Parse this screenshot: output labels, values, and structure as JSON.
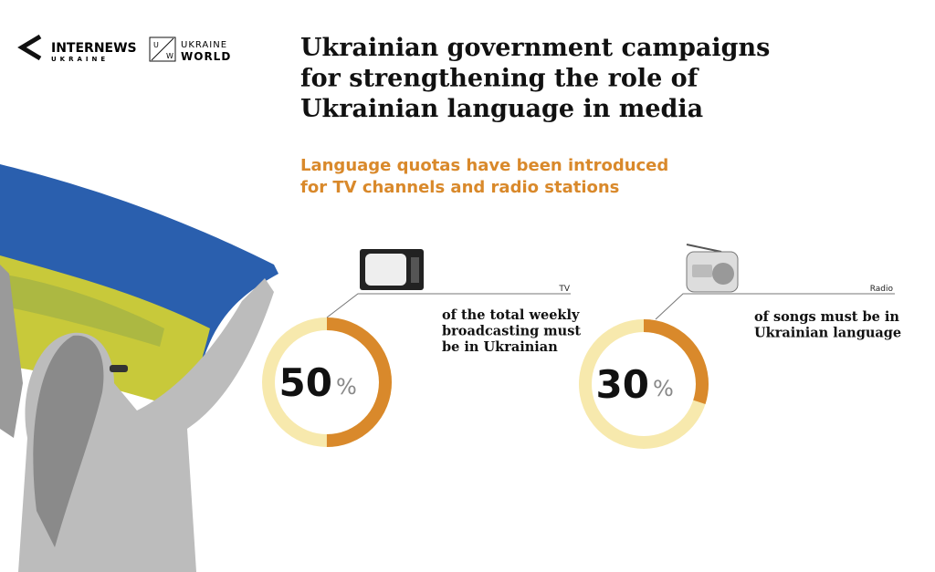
{
  "logos": {
    "internews": [
      "INTERNEWS",
      "UKRAINE"
    ],
    "ukraine_world": {
      "mark": [
        "U",
        "W"
      ],
      "words": [
        "UKRAINE",
        "WORLD"
      ]
    }
  },
  "title": [
    "Ukrainian government campaigns",
    "for strengthening the role of",
    "Ukrainian language in media"
  ],
  "subtitle": [
    "Language quotas have been introduced",
    "for TV channels and radio stations"
  ],
  "chart_data": [
    {
      "type": "donut",
      "label": "TV",
      "value": 50,
      "unit": "%",
      "range": [
        0,
        100
      ],
      "color": "#d9892b",
      "track_color": "#f7e9ad",
      "description": [
        "of the total weekly",
        "broadcasting must",
        "be in Ukrainian"
      ]
    },
    {
      "type": "donut",
      "label": "Radio",
      "value": 30,
      "unit": "%",
      "range": [
        0,
        100
      ],
      "color": "#d9892b",
      "track_color": "#f7e9ad",
      "description": [
        "of songs must be in",
        "Ukrainian language"
      ]
    }
  ]
}
